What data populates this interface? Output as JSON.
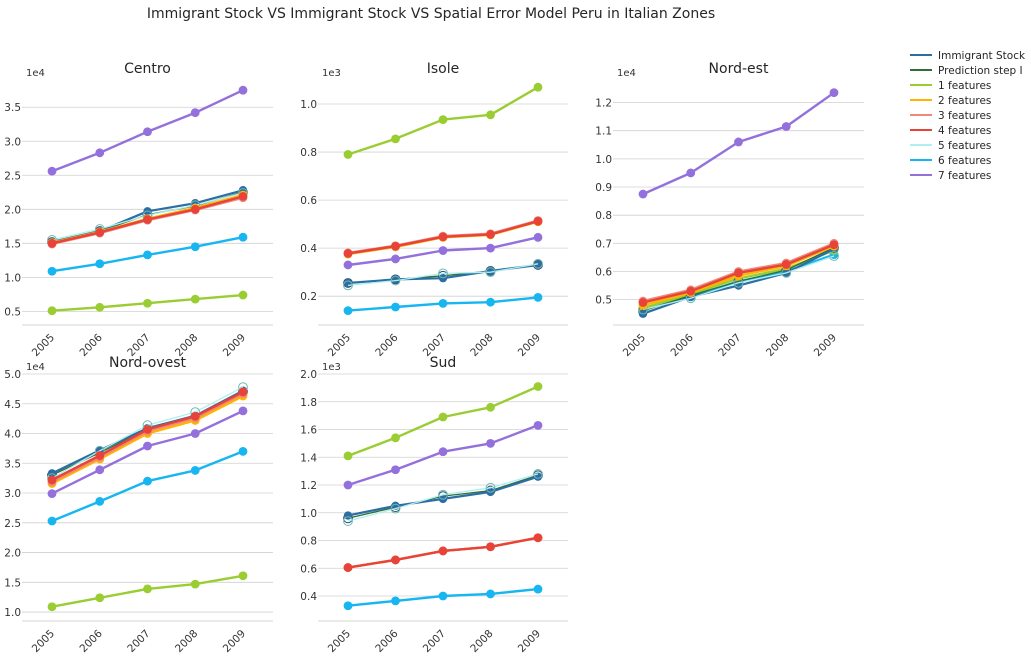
{
  "suptitle": "Immigrant Stock VS Immigrant Stock VS Spatial Error Model Peru in Italian Zones",
  "legend": {
    "placement": "right",
    "entries": [
      {
        "label": "Immigrant Stock",
        "color": "#2c6ea3"
      },
      {
        "label": "Prediction step I",
        "color": "#2f6e3a"
      },
      {
        "label": "1 features",
        "color": "#9acd32"
      },
      {
        "label": "2 features",
        "color": "#ffb400"
      },
      {
        "label": "3 features",
        "color": "#f08878"
      },
      {
        "label": "4 features",
        "color": "#e8433a"
      },
      {
        "label": "5 features",
        "color": "#aff0ec"
      },
      {
        "label": "6 features",
        "color": "#17b6f0"
      },
      {
        "label": "7 features",
        "color": "#9370db"
      }
    ]
  },
  "chart_data": [
    {
      "type": "line",
      "title": "Centro",
      "exponent": "1e4",
      "categories": [
        "2005",
        "2006",
        "2007",
        "2008",
        "2009"
      ],
      "ylim": [
        0.3,
        3.9
      ],
      "yticks": [
        0.5,
        1.0,
        1.5,
        2.0,
        2.5,
        3.0,
        3.5
      ],
      "ytick_labels": [
        "0.5",
        "1.0",
        "1.5",
        "2.0",
        "2.5",
        "3.0",
        "3.5"
      ],
      "grid": true,
      "series": [
        {
          "name": "Immigrant Stock",
          "values": [
            1.52,
            1.68,
            1.97,
            2.09,
            2.28
          ]
        },
        {
          "name": "Prediction step I",
          "values": [
            1.52,
            1.68,
            1.92,
            2.05,
            2.25
          ]
        },
        {
          "name": "1 features",
          "values": [
            0.51,
            0.56,
            0.62,
            0.68,
            0.74
          ]
        },
        {
          "name": "2 features",
          "values": [
            1.51,
            1.67,
            1.86,
            2.02,
            2.21
          ]
        },
        {
          "name": "3 features",
          "values": [
            1.49,
            1.65,
            1.84,
            1.99,
            2.17
          ]
        },
        {
          "name": "4 features",
          "values": [
            1.5,
            1.66,
            1.85,
            2.0,
            2.19
          ]
        },
        {
          "name": "5 features",
          "values": [
            1.55,
            1.71,
            1.91,
            2.06,
            2.24
          ]
        },
        {
          "name": "6 features",
          "values": [
            1.09,
            1.2,
            1.33,
            1.45,
            1.59
          ]
        },
        {
          "name": "7 features",
          "values": [
            2.56,
            2.83,
            3.14,
            3.42,
            3.75
          ]
        }
      ]
    },
    {
      "type": "line",
      "title": "Isole",
      "exponent": "1e3",
      "categories": [
        "2005",
        "2006",
        "2007",
        "2008",
        "2009"
      ],
      "ylim": [
        0.08,
        1.1
      ],
      "yticks": [
        0.2,
        0.4,
        0.6,
        0.8,
        1.0
      ],
      "ytick_labels": [
        "0.2",
        "0.4",
        "0.6",
        "0.8",
        "1.0"
      ],
      "grid": true,
      "series": [
        {
          "name": "Immigrant Stock",
          "values": [
            0.255,
            0.27,
            0.275,
            0.305,
            0.33
          ]
        },
        {
          "name": "Prediction step I",
          "values": [
            0.255,
            0.27,
            0.285,
            0.305,
            0.33
          ]
        },
        {
          "name": "1 features",
          "values": [
            0.79,
            0.855,
            0.935,
            0.955,
            1.07
          ]
        },
        {
          "name": "2 features",
          "values": [
            0.375,
            0.405,
            0.445,
            0.455,
            0.51
          ]
        },
        {
          "name": "3 features",
          "values": [
            0.38,
            0.41,
            0.45,
            0.46,
            0.515
          ]
        },
        {
          "name": "4 features",
          "values": [
            0.378,
            0.408,
            0.447,
            0.457,
            0.512
          ]
        },
        {
          "name": "5 features",
          "values": [
            0.245,
            0.265,
            0.295,
            0.3,
            0.335
          ]
        },
        {
          "name": "6 features",
          "values": [
            0.14,
            0.155,
            0.17,
            0.175,
            0.195
          ]
        },
        {
          "name": "7 features",
          "values": [
            0.33,
            0.355,
            0.39,
            0.4,
            0.445
          ]
        }
      ]
    },
    {
      "type": "line",
      "title": "Nord-est",
      "exponent": "1e4",
      "categories": [
        "2005",
        "2006",
        "2007",
        "2008",
        "2009"
      ],
      "ylim": [
        0.41,
        1.28
      ],
      "yticks": [
        0.5,
        0.6,
        0.7,
        0.8,
        0.9,
        1.0,
        1.1,
        1.2
      ],
      "ytick_labels": [
        "0.5",
        "0.6",
        "0.7",
        "0.8",
        "0.9",
        "1.0",
        "1.1",
        "1.2"
      ],
      "grid": true,
      "series": [
        {
          "name": "Immigrant Stock",
          "values": [
            0.45,
            0.51,
            0.55,
            0.595,
            0.68
          ]
        },
        {
          "name": "Prediction step I",
          "values": [
            0.46,
            0.515,
            0.565,
            0.605,
            0.685
          ]
        },
        {
          "name": "1 features",
          "values": [
            0.47,
            0.52,
            0.575,
            0.61,
            0.675
          ]
        },
        {
          "name": "2 features",
          "values": [
            0.48,
            0.525,
            0.585,
            0.62,
            0.69
          ]
        },
        {
          "name": "3 features",
          "values": [
            0.495,
            0.535,
            0.6,
            0.63,
            0.7
          ]
        },
        {
          "name": "4 features",
          "values": [
            0.49,
            0.53,
            0.595,
            0.625,
            0.695
          ]
        },
        {
          "name": "5 features",
          "values": [
            0.465,
            0.505,
            0.56,
            0.595,
            0.655
          ]
        },
        {
          "name": "6 features",
          "values": [
            0.47,
            0.51,
            0.565,
            0.6,
            0.66
          ]
        },
        {
          "name": "7 features",
          "values": [
            0.875,
            0.95,
            1.06,
            1.115,
            1.235
          ]
        }
      ]
    },
    {
      "type": "line",
      "title": "Nord-ovest",
      "exponent": "1e4",
      "categories": [
        "2005",
        "2006",
        "2007",
        "2008",
        "2009"
      ],
      "ylim": [
        0.85,
        5.0
      ],
      "yticks": [
        1.0,
        1.5,
        2.0,
        2.5,
        3.0,
        3.5,
        4.0,
        4.5,
        5.0
      ],
      "ytick_labels": [
        "1.0",
        "1.5",
        "2.0",
        "2.5",
        "3.0",
        "3.5",
        "4.0",
        "4.5",
        "5.0"
      ],
      "grid": true,
      "series": [
        {
          "name": "Immigrant Stock",
          "values": [
            3.33,
            3.72,
            4.09,
            4.3,
            4.72
          ]
        },
        {
          "name": "Prediction step I",
          "values": [
            3.3,
            3.68,
            4.07,
            4.28,
            4.7
          ]
        },
        {
          "name": "1 features",
          "values": [
            1.09,
            1.24,
            1.39,
            1.47,
            1.61
          ]
        },
        {
          "name": "2 features",
          "values": [
            3.16,
            3.57,
            4.0,
            4.22,
            4.63
          ]
        },
        {
          "name": "3 features",
          "values": [
            3.19,
            3.6,
            4.04,
            4.26,
            4.67
          ]
        },
        {
          "name": "4 features",
          "values": [
            3.22,
            3.63,
            4.07,
            4.29,
            4.7
          ]
        },
        {
          "name": "5 features",
          "values": [
            3.25,
            3.71,
            4.14,
            4.36,
            4.78
          ]
        },
        {
          "name": "6 features",
          "values": [
            2.53,
            2.86,
            3.2,
            3.38,
            3.7
          ]
        },
        {
          "name": "7 features",
          "values": [
            2.99,
            3.39,
            3.79,
            4.0,
            4.38
          ]
        }
      ]
    },
    {
      "type": "line",
      "title": "Sud",
      "exponent": "1e3",
      "categories": [
        "2005",
        "2006",
        "2007",
        "2008",
        "2009"
      ],
      "ylim": [
        0.22,
        2.0
      ],
      "yticks": [
        0.4,
        0.6,
        0.8,
        1.0,
        1.2,
        1.4,
        1.6,
        1.8,
        2.0
      ],
      "ytick_labels": [
        "0.4",
        "0.6",
        "0.8",
        "1.0",
        "1.2",
        "1.4",
        "1.6",
        "1.8",
        "2.0"
      ],
      "grid": true,
      "series": [
        {
          "name": "Immigrant Stock",
          "values": [
            0.98,
            1.05,
            1.1,
            1.15,
            1.26
          ]
        },
        {
          "name": "Prediction step I",
          "values": [
            0.96,
            1.04,
            1.12,
            1.16,
            1.27
          ]
        },
        {
          "name": "1 features",
          "values": [
            1.41,
            1.54,
            1.69,
            1.76,
            1.91
          ]
        },
        {
          "name": "2 features",
          "values": [
            0.605,
            0.66,
            0.725,
            0.755,
            0.82
          ]
        },
        {
          "name": "3 features",
          "values": [
            0.605,
            0.66,
            0.725,
            0.755,
            0.82
          ]
        },
        {
          "name": "4 features",
          "values": [
            0.605,
            0.66,
            0.725,
            0.755,
            0.82
          ]
        },
        {
          "name": "5 features",
          "values": [
            0.94,
            1.03,
            1.13,
            1.18,
            1.28
          ]
        },
        {
          "name": "6 features",
          "values": [
            0.33,
            0.365,
            0.4,
            0.415,
            0.45
          ]
        },
        {
          "name": "7 features",
          "values": [
            1.2,
            1.31,
            1.44,
            1.5,
            1.63
          ]
        }
      ]
    }
  ]
}
